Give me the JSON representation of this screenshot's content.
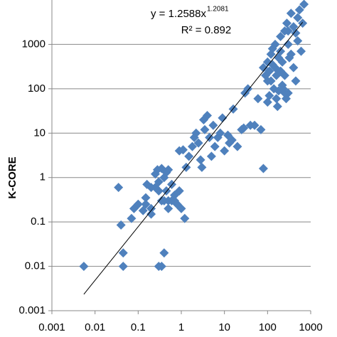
{
  "chart_data": {
    "type": "scatter",
    "y_label": "K-CORE",
    "annotation_equation": "y = 1.2588x",
    "annotation_exponent": "1.2081",
    "annotation_r2": "R² = 0.892",
    "log_x": true,
    "log_y": true,
    "grid": true,
    "xlim": [
      0.001,
      1000
    ],
    "ylim": [
      0.001,
      10000
    ],
    "xticks": [
      0.001,
      0.01,
      0.1,
      1,
      10,
      100,
      1000
    ],
    "yticks": [
      0.001,
      0.01,
      0.1,
      1,
      10,
      100,
      1000
    ],
    "trendline": {
      "a": 1.2588,
      "b": 1.2081,
      "xrange": [
        0.0055,
        650
      ],
      "color": "#000000"
    },
    "series": [
      {
        "color": "#4f81bd",
        "x": [
          0.0055,
          0.035,
          0.04,
          0.045,
          0.045,
          0.07,
          0.08,
          0.1,
          0.13,
          0.15,
          0.16,
          0.2,
          0.2,
          0.25,
          0.28,
          0.3,
          0.3,
          0.35,
          0.35,
          0.3,
          0.4,
          0.35,
          0.4,
          0.45,
          0.5,
          0.5,
          0.6,
          0.6,
          0.7,
          0.8,
          0.9,
          1.0,
          1.2,
          0.25,
          0.4,
          0.45,
          0.5,
          0.2,
          0.15,
          0.7,
          0.9,
          1.1,
          1.3,
          1.5,
          1.8,
          2,
          2.2,
          2.5,
          2.8,
          3,
          3.3,
          3.5,
          4,
          4.5,
          5,
          5.5,
          6,
          7,
          8,
          9,
          10,
          12,
          13,
          15,
          16,
          20,
          25,
          28,
          30,
          35,
          40,
          50,
          60,
          70,
          80,
          80,
          90,
          100,
          100,
          110,
          120,
          130,
          140,
          150,
          150,
          160,
          170,
          180,
          200,
          200,
          220,
          220,
          250,
          250,
          280,
          300,
          300,
          320,
          350,
          400,
          400,
          450,
          500,
          500,
          550,
          600,
          650,
          700,
          200,
          250,
          180,
          130,
          160,
          300,
          350,
          450,
          120,
          110,
          100,
          230,
          270
        ],
        "values": [
          0.01,
          0.6,
          0.085,
          0.02,
          0.01,
          0.12,
          0.2,
          0.25,
          0.18,
          0.25,
          0.7,
          0.2,
          0.15,
          1.2,
          1.5,
          0.8,
          0.5,
          0.3,
          0.01,
          0.01,
          0.02,
          1.6,
          1.0,
          0.5,
          0.3,
          0.2,
          0.3,
          0.7,
          0.4,
          0.25,
          0.5,
          0.2,
          0.12,
          0.6,
          0.3,
          1.3,
          1.5,
          0.6,
          0.35,
          0.3,
          4,
          4.2,
          1.7,
          3,
          5,
          8,
          10,
          6,
          2.5,
          1.7,
          20,
          12,
          25,
          8,
          3,
          15,
          5,
          8,
          10,
          22,
          4,
          9,
          6,
          7,
          35,
          5,
          12,
          13,
          80,
          100,
          15,
          15,
          60,
          12,
          1.6,
          300,
          200,
          150,
          400,
          250,
          600,
          800,
          100,
          300,
          1000,
          60,
          40,
          500,
          1500,
          700,
          400,
          120,
          2000,
          200,
          3000,
          1000,
          80,
          500,
          5000,
          2500,
          300,
          150,
          4000,
          1200,
          6000,
          700,
          3000,
          8000,
          250,
          80,
          90,
          350,
          200,
          2000,
          600,
          1800,
          150,
          70,
          50,
          100,
          60
        ]
      }
    ]
  }
}
